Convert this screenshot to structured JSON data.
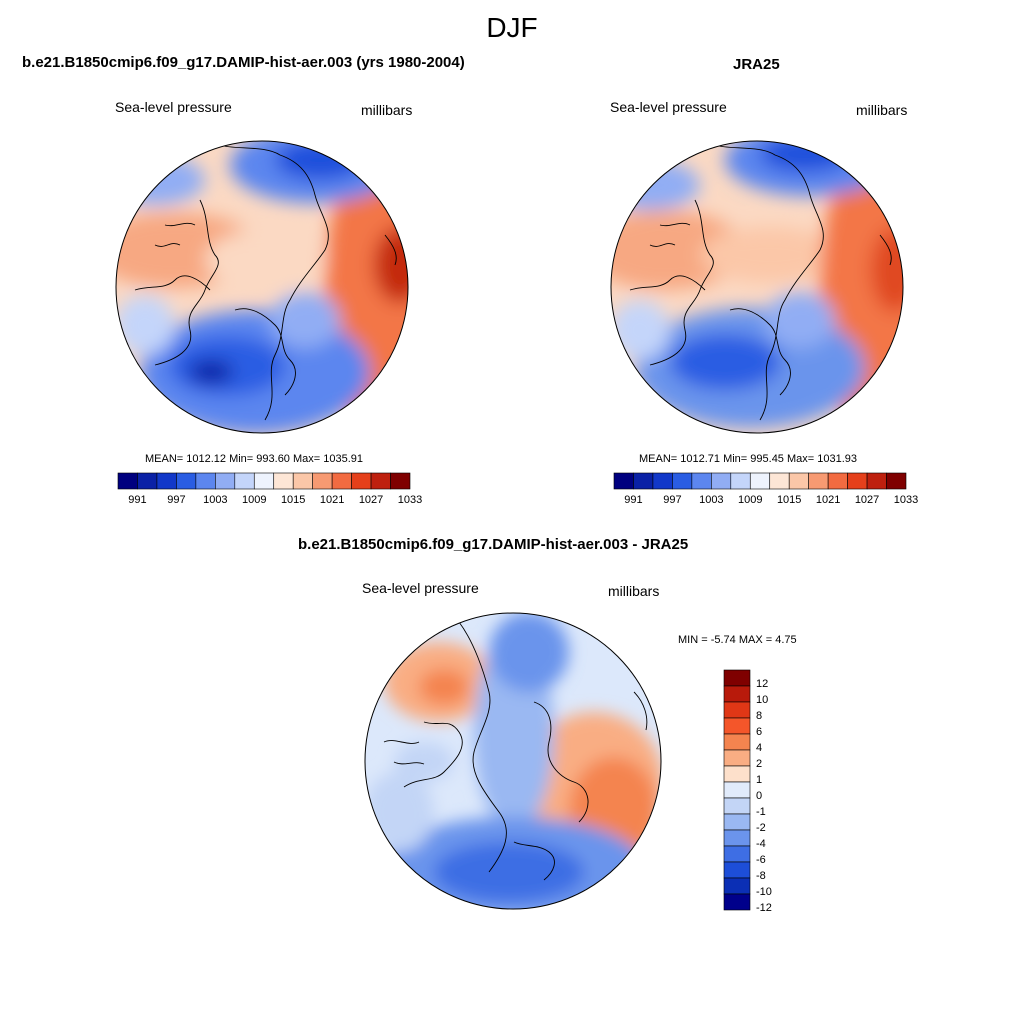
{
  "figure": {
    "title": "DJF"
  },
  "panels": {
    "model": {
      "title": "b.e21.B1850cmip6.f09_g17.DAMIP-hist-aer.003 (yrs 1980-2004)",
      "left_label": "Sea-level pressure",
      "right_label": "millibars",
      "stats": "MEAN= 1012.12  Min= 993.60  Max= 1035.91"
    },
    "obs": {
      "title": "JRA25",
      "left_label": "Sea-level pressure",
      "right_label": "millibars",
      "stats": "MEAN= 1012.71  Min= 995.45  Max= 1031.93"
    },
    "diff": {
      "title": "b.e21.B1850cmip6.f09_g17.DAMIP-hist-aer.003 - JRA25",
      "left_label": "Sea-level pressure",
      "right_label": "millibars",
      "stats": "MIN =  -5.74 MAX =   4.75"
    }
  },
  "colorbars": {
    "abs_ticks": [
      "991",
      "997",
      "1003",
      "1009",
      "1015",
      "1021",
      "1027",
      "1033"
    ],
    "abs_colors": [
      "#00007f",
      "#0a21a6",
      "#1238c9",
      "#2a5de3",
      "#5c86ef",
      "#91adf4",
      "#c4d5fa",
      "#eef3fd",
      "#fde6d6",
      "#fbc7a8",
      "#f79a72",
      "#f26b41",
      "#e5401b",
      "#be200e",
      "#7f0000"
    ],
    "diff_ticks": [
      "12",
      "10",
      "8",
      "6",
      "4",
      "2",
      "1",
      "0",
      "-1",
      "-2",
      "-4",
      "-6",
      "-8",
      "-10",
      "-12"
    ],
    "diff_colors": [
      "#7f0000",
      "#b81a0b",
      "#e03716",
      "#f4562a",
      "#f4844f",
      "#f9ad83",
      "#fde0cb",
      "#e1ebfb",
      "#c3d5f6",
      "#9ab8f2",
      "#6b94ec",
      "#3e6ee4",
      "#1d4ed8",
      "#0b2fb5",
      "#00008b"
    ]
  },
  "map_colors": {
    "model_base": "#fbd9c3",
    "obs_base": "#fbd9c3",
    "diff_base": "#dce8fb"
  }
}
